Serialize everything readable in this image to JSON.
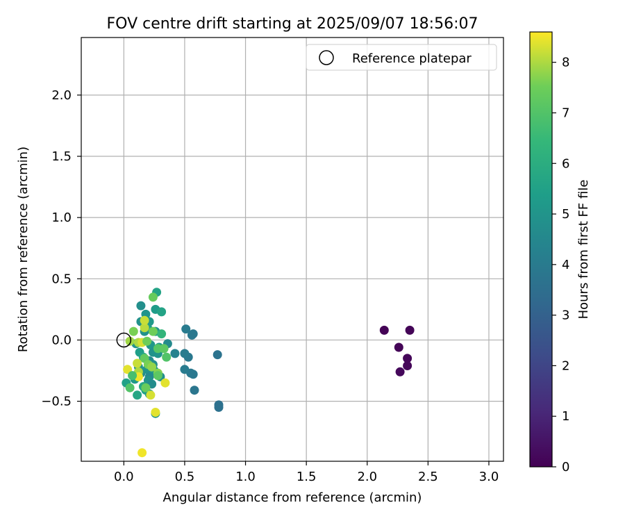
{
  "chart_data": {
    "type": "scatter",
    "title": "FOV centre drift starting at 2025/09/07 18:56:07",
    "xlabel": "Angular distance from reference (arcmin)",
    "ylabel": "Rotation from reference (arcmin)",
    "xlim": [
      -0.35,
      3.12
    ],
    "ylim": [
      -0.99,
      2.47
    ],
    "xticks": [
      0.0,
      0.5,
      1.0,
      1.5,
      2.0,
      2.5,
      3.0
    ],
    "xtick_labels": [
      "0.0",
      "0.5",
      "1.0",
      "1.5",
      "2.0",
      "2.5",
      "3.0"
    ],
    "yticks": [
      -0.5,
      0.0,
      0.5,
      1.0,
      1.5,
      2.0
    ],
    "ytick_labels": [
      "−0.5",
      "0.0",
      "0.5",
      "1.0",
      "1.5",
      "2.0"
    ],
    "grid": true,
    "legend": {
      "placement": "top-right",
      "entries": [
        {
          "label": "Reference platepar",
          "marker": "open-circle"
        }
      ]
    },
    "reference_point": {
      "x": 0.0,
      "y": 0.0
    },
    "colorbar": {
      "label": "Hours from first FF file",
      "colormap": "viridis",
      "range": [
        0,
        8.6
      ],
      "ticks": [
        0,
        1,
        2,
        3,
        4,
        5,
        6,
        7,
        8
      ],
      "tick_labels": [
        "0",
        "1",
        "2",
        "3",
        "4",
        "5",
        "6",
        "7",
        "8"
      ]
    },
    "points": [
      {
        "x": 2.14,
        "y": 0.08,
        "c": 0.05
      },
      {
        "x": 2.35,
        "y": 0.08,
        "c": 0.1
      },
      {
        "x": 2.26,
        "y": -0.06,
        "c": 0.1
      },
      {
        "x": 2.33,
        "y": -0.15,
        "c": 0.15
      },
      {
        "x": 2.33,
        "y": -0.21,
        "c": 0.15
      },
      {
        "x": 2.27,
        "y": -0.26,
        "c": 0.2
      },
      {
        "x": 0.77,
        "y": -0.12,
        "c": 3.7
      },
      {
        "x": 0.78,
        "y": -0.53,
        "c": 3.6
      },
      {
        "x": 0.78,
        "y": -0.55,
        "c": 3.6
      },
      {
        "x": 0.58,
        "y": -0.41,
        "c": 3.8
      },
      {
        "x": 0.57,
        "y": 0.05,
        "c": 3.9
      },
      {
        "x": 0.56,
        "y": 0.04,
        "c": 3.9
      },
      {
        "x": 0.51,
        "y": 0.09,
        "c": 4.0
      },
      {
        "x": 0.53,
        "y": -0.14,
        "c": 3.9
      },
      {
        "x": 0.5,
        "y": -0.11,
        "c": 4.0
      },
      {
        "x": 0.55,
        "y": -0.27,
        "c": 3.9
      },
      {
        "x": 0.57,
        "y": -0.28,
        "c": 3.9
      },
      {
        "x": 0.5,
        "y": -0.24,
        "c": 4.0
      },
      {
        "x": 0.42,
        "y": -0.11,
        "c": 4.3
      },
      {
        "x": 0.36,
        "y": -0.03,
        "c": 4.6
      },
      {
        "x": 0.27,
        "y": 0.39,
        "c": 5.6
      },
      {
        "x": 0.14,
        "y": 0.28,
        "c": 4.8
      },
      {
        "x": 0.26,
        "y": 0.25,
        "c": 5.3
      },
      {
        "x": 0.31,
        "y": 0.23,
        "c": 5.6
      },
      {
        "x": 0.18,
        "y": 0.21,
        "c": 5.0
      },
      {
        "x": 0.14,
        "y": 0.15,
        "c": 4.9
      },
      {
        "x": 0.21,
        "y": 0.15,
        "c": 5.2
      },
      {
        "x": 0.2,
        "y": 0.09,
        "c": 5.3
      },
      {
        "x": 0.17,
        "y": 0.07,
        "c": 4.9
      },
      {
        "x": 0.26,
        "y": 0.07,
        "c": 5.0
      },
      {
        "x": 0.31,
        "y": 0.05,
        "c": 6.3
      },
      {
        "x": 0.1,
        "y": -0.03,
        "c": 4.9
      },
      {
        "x": 0.22,
        "y": -0.04,
        "c": 5.1
      },
      {
        "x": 0.29,
        "y": -0.06,
        "c": 5.2
      },
      {
        "x": 0.24,
        "y": -0.1,
        "c": 4.9
      },
      {
        "x": 0.28,
        "y": -0.11,
        "c": 5.0
      },
      {
        "x": 0.13,
        "y": -0.1,
        "c": 5.4
      },
      {
        "x": 0.16,
        "y": -0.14,
        "c": 5.7
      },
      {
        "x": 0.21,
        "y": -0.17,
        "c": 4.7
      },
      {
        "x": 0.24,
        "y": -0.2,
        "c": 4.8
      },
      {
        "x": 0.12,
        "y": -0.22,
        "c": 4.9
      },
      {
        "x": 0.19,
        "y": -0.24,
        "c": 5.0
      },
      {
        "x": 0.25,
        "y": -0.25,
        "c": 5.2
      },
      {
        "x": 0.14,
        "y": -0.27,
        "c": 4.8
      },
      {
        "x": 0.21,
        "y": -0.3,
        "c": 4.6
      },
      {
        "x": 0.3,
        "y": -0.3,
        "c": 4.8
      },
      {
        "x": 0.09,
        "y": -0.32,
        "c": 5.2
      },
      {
        "x": 0.2,
        "y": -0.33,
        "c": 4.9
      },
      {
        "x": 0.23,
        "y": -0.36,
        "c": 4.7
      },
      {
        "x": 0.02,
        "y": -0.35,
        "c": 5.5
      },
      {
        "x": 0.16,
        "y": -0.38,
        "c": 5.8
      },
      {
        "x": 0.18,
        "y": -0.41,
        "c": 5.6
      },
      {
        "x": 0.11,
        "y": -0.45,
        "c": 5.7
      },
      {
        "x": 0.21,
        "y": -0.44,
        "c": 5.1
      },
      {
        "x": 0.26,
        "y": -0.6,
        "c": 5.0
      },
      {
        "x": 0.24,
        "y": 0.35,
        "c": 7.4
      },
      {
        "x": 0.08,
        "y": 0.07,
        "c": 7.6
      },
      {
        "x": 0.24,
        "y": 0.07,
        "c": 7.5
      },
      {
        "x": 0.17,
        "y": 0.1,
        "c": 8.1
      },
      {
        "x": 0.17,
        "y": 0.16,
        "c": 8.2
      },
      {
        "x": 0.05,
        "y": -0.01,
        "c": 7.9
      },
      {
        "x": 0.12,
        "y": -0.02,
        "c": 8.0
      },
      {
        "x": 0.15,
        "y": -0.02,
        "c": 8.3
      },
      {
        "x": 0.19,
        "y": -0.01,
        "c": 7.5
      },
      {
        "x": 0.28,
        "y": -0.07,
        "c": 7.1
      },
      {
        "x": 0.33,
        "y": -0.07,
        "c": 7.2
      },
      {
        "x": 0.35,
        "y": -0.14,
        "c": 7.0
      },
      {
        "x": 0.17,
        "y": -0.15,
        "c": 7.3
      },
      {
        "x": 0.2,
        "y": -0.2,
        "c": 7.6
      },
      {
        "x": 0.23,
        "y": -0.22,
        "c": 7.8
      },
      {
        "x": 0.11,
        "y": -0.19,
        "c": 8.2
      },
      {
        "x": 0.03,
        "y": -0.24,
        "c": 8.4
      },
      {
        "x": 0.12,
        "y": -0.26,
        "c": 8.0
      },
      {
        "x": 0.12,
        "y": -0.3,
        "c": 8.5
      },
      {
        "x": 0.28,
        "y": -0.27,
        "c": 7.7
      },
      {
        "x": 0.28,
        "y": -0.29,
        "c": 7.2
      },
      {
        "x": 0.34,
        "y": -0.35,
        "c": 8.4
      },
      {
        "x": 0.07,
        "y": -0.29,
        "c": 6.8
      },
      {
        "x": 0.05,
        "y": -0.39,
        "c": 7.0
      },
      {
        "x": 0.18,
        "y": -0.39,
        "c": 7.4
      },
      {
        "x": 0.22,
        "y": -0.45,
        "c": 8.3
      },
      {
        "x": 0.26,
        "y": -0.59,
        "c": 8.4
      },
      {
        "x": 0.15,
        "y": -0.92,
        "c": 8.5
      }
    ]
  }
}
